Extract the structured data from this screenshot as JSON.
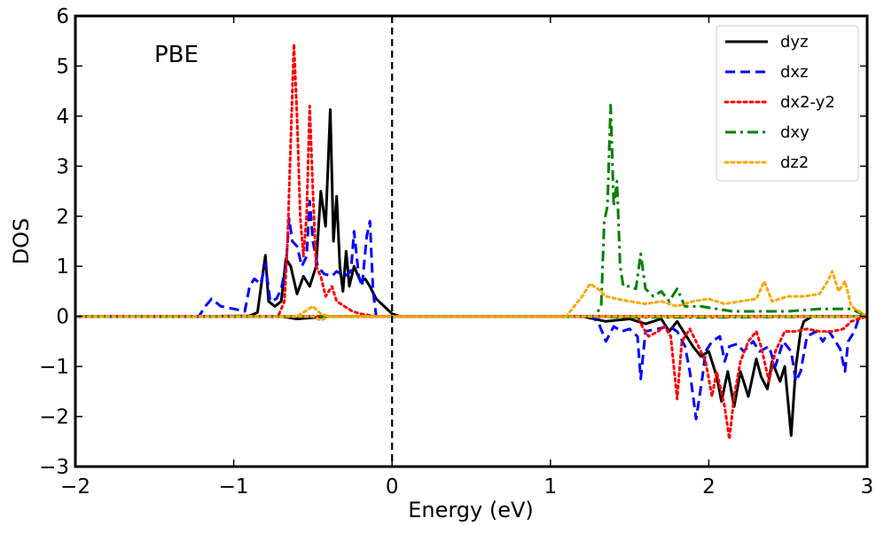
{
  "chart_data": {
    "type": "line",
    "title": "",
    "xlabel": "Energy (eV)",
    "ylabel": "DOS",
    "xlim": [
      -2,
      3
    ],
    "ylim": [
      -3,
      6
    ],
    "xticks": [
      -2,
      -1,
      0,
      1,
      2,
      3
    ],
    "xtick_labels": [
      "−2",
      "−1",
      "0",
      "1",
      "2",
      "3"
    ],
    "yticks": [
      -3,
      -2,
      -1,
      0,
      1,
      2,
      3,
      4,
      5,
      6
    ],
    "ytick_labels": [
      "−3",
      "−2",
      "−1",
      "0",
      "1",
      "2",
      "3",
      "4",
      "5",
      "6"
    ],
    "grid": false,
    "legend_position": "top-right",
    "annotation": "PBE",
    "fermi_level": 0,
    "series": [
      {
        "name": "dyz",
        "color": "#000000",
        "style": "solid",
        "spin_up": [
          [
            -2,
            0
          ],
          [
            -1.2,
            0
          ],
          [
            -0.9,
            0.01
          ],
          [
            -0.85,
            0.08
          ],
          [
            -0.8,
            1.22
          ],
          [
            -0.78,
            0.3
          ],
          [
            -0.74,
            0.2
          ],
          [
            -0.7,
            0.3
          ],
          [
            -0.67,
            1.15
          ],
          [
            -0.64,
            1.0
          ],
          [
            -0.6,
            0.45
          ],
          [
            -0.56,
            0.8
          ],
          [
            -0.52,
            0.6
          ],
          [
            -0.48,
            1.0
          ],
          [
            -0.45,
            2.5
          ],
          [
            -0.42,
            1.8
          ],
          [
            -0.39,
            4.13
          ],
          [
            -0.37,
            1.5
          ],
          [
            -0.35,
            2.4
          ],
          [
            -0.33,
            1.0
          ],
          [
            -0.31,
            0.5
          ],
          [
            -0.29,
            1.3
          ],
          [
            -0.27,
            0.6
          ],
          [
            -0.24,
            1.0
          ],
          [
            -0.2,
            0.7
          ],
          [
            -0.17,
            0.75
          ],
          [
            -0.14,
            0.6
          ],
          [
            -0.1,
            0.35
          ],
          [
            -0.05,
            0.2
          ],
          [
            0,
            0.05
          ],
          [
            0.05,
            0
          ],
          [
            3,
            0
          ]
        ],
        "spin_down": [
          [
            -2,
            0
          ],
          [
            -0.7,
            0
          ],
          [
            -0.6,
            -0.05
          ],
          [
            -0.4,
            0
          ],
          [
            1.2,
            0
          ],
          [
            1.35,
            -0.1
          ],
          [
            1.5,
            -0.05
          ],
          [
            1.6,
            -0.15
          ],
          [
            1.7,
            -0.05
          ],
          [
            1.75,
            -0.3
          ],
          [
            1.8,
            -0.1
          ],
          [
            1.85,
            -0.35
          ],
          [
            1.9,
            -0.6
          ],
          [
            1.95,
            -0.8
          ],
          [
            2.0,
            -0.7
          ],
          [
            2.05,
            -1.2
          ],
          [
            2.08,
            -1.7
          ],
          [
            2.12,
            -1.1
          ],
          [
            2.16,
            -1.8
          ],
          [
            2.2,
            -1.1
          ],
          [
            2.25,
            -1.6
          ],
          [
            2.3,
            -0.85
          ],
          [
            2.33,
            -1.2
          ],
          [
            2.37,
            -1.45
          ],
          [
            2.4,
            -0.9
          ],
          [
            2.45,
            -1.3
          ],
          [
            2.48,
            -1.0
          ],
          [
            2.52,
            -2.38
          ],
          [
            2.55,
            -1.0
          ],
          [
            2.58,
            -0.3
          ],
          [
            2.6,
            -0.1
          ],
          [
            2.65,
            0
          ],
          [
            3,
            0
          ]
        ]
      },
      {
        "name": "dxz",
        "color": "#0000ff",
        "style": "dashed",
        "spin_up": [
          [
            -2,
            0
          ],
          [
            -1.22,
            0
          ],
          [
            -1.18,
            0.2
          ],
          [
            -1.14,
            0.35
          ],
          [
            -1.08,
            0.2
          ],
          [
            -1.0,
            0.15
          ],
          [
            -0.93,
            0.1
          ],
          [
            -0.9,
            0.6
          ],
          [
            -0.87,
            0.75
          ],
          [
            -0.83,
            0.65
          ],
          [
            -0.8,
            1.05
          ],
          [
            -0.77,
            0.3
          ],
          [
            -0.73,
            0.35
          ],
          [
            -0.7,
            0.55
          ],
          [
            -0.67,
            1.0
          ],
          [
            -0.65,
            1.95
          ],
          [
            -0.63,
            1.5
          ],
          [
            -0.6,
            1.4
          ],
          [
            -0.57,
            1.0
          ],
          [
            -0.54,
            1.2
          ],
          [
            -0.52,
            2.3
          ],
          [
            -0.5,
            1.5
          ],
          [
            -0.47,
            1.0
          ],
          [
            -0.43,
            0.85
          ],
          [
            -0.38,
            0.8
          ],
          [
            -0.35,
            0.9
          ],
          [
            -0.3,
            0.8
          ],
          [
            -0.26,
            0.9
          ],
          [
            -0.24,
            1.7
          ],
          [
            -0.21,
            0.8
          ],
          [
            -0.19,
            0.6
          ],
          [
            -0.16,
            1.6
          ],
          [
            -0.14,
            1.9
          ],
          [
            -0.12,
            0.5
          ],
          [
            -0.1,
            0
          ],
          [
            3,
            0
          ]
        ],
        "spin_down": [
          [
            -2,
            0
          ],
          [
            1.25,
            0
          ],
          [
            1.3,
            -0.1
          ],
          [
            1.35,
            -0.5
          ],
          [
            1.4,
            -0.2
          ],
          [
            1.45,
            -0.3
          ],
          [
            1.5,
            -0.25
          ],
          [
            1.55,
            -0.4
          ],
          [
            1.57,
            -1.25
          ],
          [
            1.6,
            -0.3
          ],
          [
            1.75,
            -0.2
          ],
          [
            1.8,
            -0.3
          ],
          [
            1.85,
            -0.6
          ],
          [
            1.88,
            -1.1
          ],
          [
            1.92,
            -2.05
          ],
          [
            1.96,
            -1.2
          ],
          [
            1.98,
            -0.7
          ],
          [
            2.02,
            -0.5
          ],
          [
            2.07,
            -0.4
          ],
          [
            2.1,
            -0.9
          ],
          [
            2.13,
            -0.6
          ],
          [
            2.18,
            -0.55
          ],
          [
            2.22,
            -0.7
          ],
          [
            2.28,
            -0.5
          ],
          [
            2.32,
            -0.7
          ],
          [
            2.38,
            -0.6
          ],
          [
            2.42,
            -1.0
          ],
          [
            2.47,
            -0.5
          ],
          [
            2.52,
            -0.7
          ],
          [
            2.55,
            -1.3
          ],
          [
            2.58,
            -1.1
          ],
          [
            2.62,
            -0.4
          ],
          [
            2.68,
            -0.3
          ],
          [
            2.72,
            -0.5
          ],
          [
            2.76,
            -0.3
          ],
          [
            2.8,
            -0.5
          ],
          [
            2.83,
            -0.65
          ],
          [
            2.86,
            -1.1
          ],
          [
            2.88,
            -0.5
          ],
          [
            2.92,
            -0.3
          ],
          [
            2.95,
            0
          ],
          [
            3,
            0
          ]
        ]
      },
      {
        "name": "dx2-y2",
        "color": "#ff0000",
        "style": "dotted",
        "spin_up": [
          [
            -2,
            0
          ],
          [
            -0.72,
            0
          ],
          [
            -0.68,
            0.3
          ],
          [
            -0.66,
            1.5
          ],
          [
            -0.64,
            3.5
          ],
          [
            -0.62,
            5.44
          ],
          [
            -0.6,
            4.0
          ],
          [
            -0.58,
            2.0
          ],
          [
            -0.56,
            1.2
          ],
          [
            -0.54,
            2.0
          ],
          [
            -0.52,
            4.2
          ],
          [
            -0.5,
            2.5
          ],
          [
            -0.48,
            1.0
          ],
          [
            -0.45,
            0.8
          ],
          [
            -0.42,
            0.4
          ],
          [
            -0.38,
            0.6
          ],
          [
            -0.35,
            0.3
          ],
          [
            -0.3,
            0.2
          ],
          [
            -0.25,
            0.1
          ],
          [
            -0.2,
            0.05
          ],
          [
            -0.1,
            0
          ],
          [
            3,
            0
          ]
        ],
        "spin_down": [
          [
            -2,
            0
          ],
          [
            1.55,
            0
          ],
          [
            1.58,
            -0.2
          ],
          [
            1.62,
            -0.4
          ],
          [
            1.68,
            -0.3
          ],
          [
            1.72,
            -0.2
          ],
          [
            1.76,
            -0.4
          ],
          [
            1.8,
            -1.65
          ],
          [
            1.83,
            -0.5
          ],
          [
            1.88,
            -0.25
          ],
          [
            1.92,
            -0.5
          ],
          [
            1.98,
            -0.9
          ],
          [
            2.02,
            -1.6
          ],
          [
            2.05,
            -1.1
          ],
          [
            2.1,
            -1.8
          ],
          [
            2.13,
            -2.45
          ],
          [
            2.16,
            -1.6
          ],
          [
            2.2,
            -0.9
          ],
          [
            2.25,
            -0.5
          ],
          [
            2.3,
            -0.3
          ],
          [
            2.33,
            -0.6
          ],
          [
            2.38,
            -1.3
          ],
          [
            2.42,
            -0.7
          ],
          [
            2.48,
            -0.3
          ],
          [
            2.55,
            -0.3
          ],
          [
            2.62,
            -0.25
          ],
          [
            2.7,
            -0.3
          ],
          [
            2.78,
            -0.3
          ],
          [
            2.85,
            -0.25
          ],
          [
            2.9,
            -0.1
          ],
          [
            3,
            0
          ]
        ]
      },
      {
        "name": "dxy",
        "color": "#008000",
        "style": "dashdot",
        "spin_up": [
          [
            -2,
            0
          ],
          [
            1.28,
            0
          ],
          [
            1.32,
            0.2
          ],
          [
            1.34,
            1.9
          ],
          [
            1.36,
            2.2
          ],
          [
            1.38,
            4.22
          ],
          [
            1.4,
            2.2
          ],
          [
            1.42,
            2.7
          ],
          [
            1.44,
            1.0
          ],
          [
            1.46,
            0.6
          ],
          [
            1.5,
            0.6
          ],
          [
            1.54,
            0.55
          ],
          [
            1.57,
            1.25
          ],
          [
            1.6,
            0.55
          ],
          [
            1.65,
            0.4
          ],
          [
            1.7,
            0.5
          ],
          [
            1.75,
            0.3
          ],
          [
            1.8,
            0.55
          ],
          [
            1.85,
            0.2
          ],
          [
            1.95,
            0.2
          ],
          [
            2.05,
            0.15
          ],
          [
            2.15,
            0.1
          ],
          [
            2.3,
            0.1
          ],
          [
            2.5,
            0.1
          ],
          [
            2.7,
            0.15
          ],
          [
            2.9,
            0.15
          ],
          [
            3,
            0
          ]
        ],
        "spin_down": [
          [
            -2,
            0
          ],
          [
            1.25,
            0
          ],
          [
            1.5,
            -0.02
          ],
          [
            2.0,
            -0.02
          ],
          [
            3,
            0
          ]
        ]
      },
      {
        "name": "dz2",
        "color": "#ffa500",
        "style": "dotted",
        "spin_up": [
          [
            -2,
            0
          ],
          [
            -0.6,
            0
          ],
          [
            -0.55,
            0.1
          ],
          [
            -0.5,
            0.2
          ],
          [
            -0.45,
            0.05
          ],
          [
            -0.4,
            0
          ],
          [
            1.1,
            0
          ],
          [
            1.15,
            0.2
          ],
          [
            1.2,
            0.4
          ],
          [
            1.25,
            0.65
          ],
          [
            1.3,
            0.55
          ],
          [
            1.35,
            0.4
          ],
          [
            1.42,
            0.35
          ],
          [
            1.5,
            0.3
          ],
          [
            1.6,
            0.25
          ],
          [
            1.7,
            0.3
          ],
          [
            1.8,
            0.2
          ],
          [
            1.9,
            0.3
          ],
          [
            2.0,
            0.35
          ],
          [
            2.1,
            0.25
          ],
          [
            2.2,
            0.3
          ],
          [
            2.3,
            0.35
          ],
          [
            2.35,
            0.7
          ],
          [
            2.4,
            0.3
          ],
          [
            2.5,
            0.4
          ],
          [
            2.6,
            0.4
          ],
          [
            2.7,
            0.45
          ],
          [
            2.75,
            0.7
          ],
          [
            2.78,
            0.9
          ],
          [
            2.82,
            0.5
          ],
          [
            2.86,
            0.7
          ],
          [
            2.9,
            0.2
          ],
          [
            3,
            0
          ]
        ],
        "spin_down": [
          [
            -2,
            0
          ],
          [
            -0.5,
            0
          ],
          [
            -0.45,
            -0.08
          ],
          [
            -0.4,
            0
          ],
          [
            3,
            0
          ]
        ]
      }
    ]
  }
}
